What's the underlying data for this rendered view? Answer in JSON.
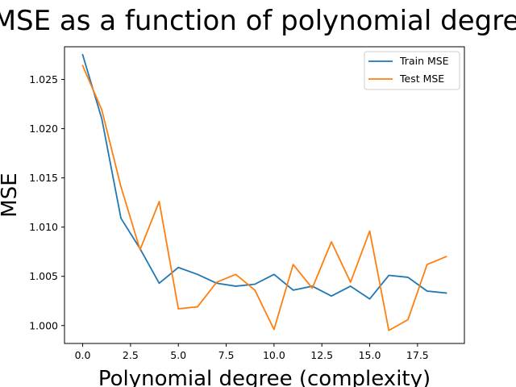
{
  "chart_data": {
    "type": "line",
    "title": "MSE as a function of polynomial degree",
    "xlabel": "Polynomial degree (complexity)",
    "ylabel": "MSE",
    "xlim": [
      -0.95,
      19.95
    ],
    "ylim": [
      0.99818,
      1.02832
    ],
    "xticks": [
      0.0,
      2.5,
      5.0,
      7.5,
      10.0,
      12.5,
      15.0,
      17.5
    ],
    "xtick_labels": [
      "0.0",
      "2.5",
      "5.0",
      "7.5",
      "10.0",
      "12.5",
      "15.0",
      "17.5"
    ],
    "yticks": [
      1.0,
      1.005,
      1.01,
      1.015,
      1.02,
      1.025
    ],
    "ytick_labels": [
      "1.000",
      "1.005",
      "1.010",
      "1.015",
      "1.020",
      "1.025"
    ],
    "grid": false,
    "legend_position": "upper right",
    "x": [
      0,
      1,
      2,
      3,
      4,
      5,
      6,
      7,
      8,
      9,
      10,
      11,
      12,
      13,
      14,
      15,
      16,
      17,
      18,
      19
    ],
    "series": [
      {
        "name": "Train MSE",
        "color": "#1f77b4",
        "values": [
          1.0275,
          1.021,
          1.0109,
          1.0078,
          1.0043,
          1.0059,
          1.0052,
          1.0043,
          1.004,
          1.0042,
          1.0052,
          1.0036,
          1.004,
          1.003,
          1.004,
          1.0027,
          1.0051,
          1.0049,
          1.0035,
          1.0033
        ]
      },
      {
        "name": "Test MSE",
        "color": "#ff7f0e",
        "values": [
          1.0264,
          1.0219,
          1.0141,
          1.0077,
          1.0126,
          1.0017,
          1.0019,
          1.0044,
          1.0052,
          1.0036,
          0.9996,
          1.0062,
          1.0038,
          1.0085,
          1.0044,
          1.0096,
          0.9995,
          1.0006,
          1.0062,
          1.007
        ]
      }
    ]
  }
}
